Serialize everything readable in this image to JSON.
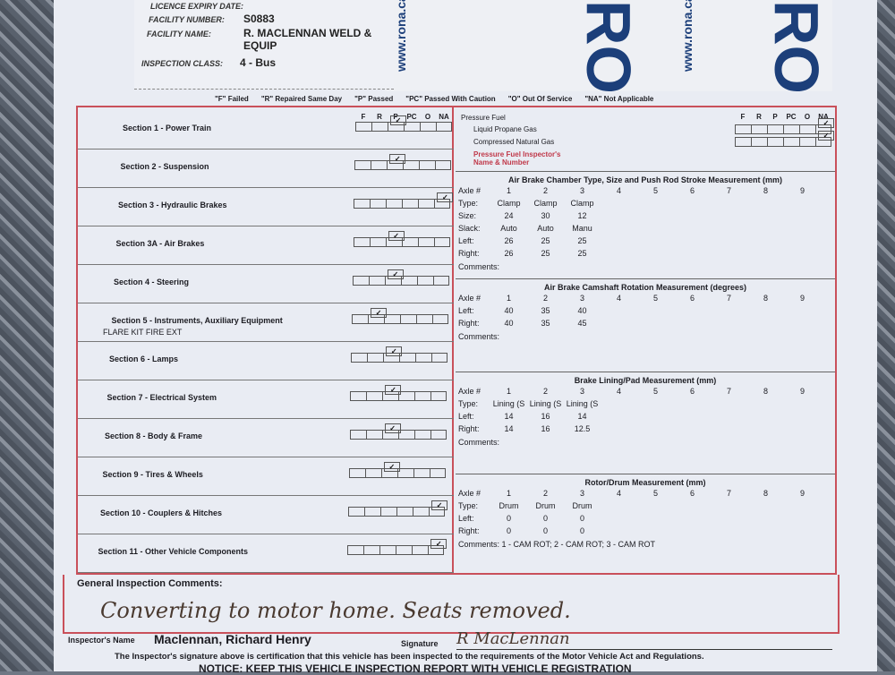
{
  "background": {
    "bag_brand": "RONA",
    "bag_url": "www.rona.ca"
  },
  "header": {
    "expiry_label": "LICENCE EXPIRY DATE:",
    "facility_number_label": "FACILITY NUMBER:",
    "facility_number": "S0883",
    "facility_name_label": "FACILITY NAME:",
    "facility_name": "R. MACLENNAN WELD & EQUIP",
    "inspection_class_label": "INSPECTION CLASS:",
    "inspection_class": "4 - Bus"
  },
  "legend": [
    "\"F\" Failed",
    "\"R\" Repaired Same Day",
    "\"P\" Passed",
    "\"PC\" Passed With Caution",
    "\"O\" Out Of Service",
    "\"NA\" Not Applicable"
  ],
  "columns": [
    "F",
    "R",
    "P",
    "PC",
    "O",
    "NA"
  ],
  "sections": [
    {
      "name": "Section 1 - Power Train",
      "result": "P"
    },
    {
      "name": "Section 2 - Suspension",
      "result": "P"
    },
    {
      "name": "Section 3 - Hydraulic Brakes",
      "result": "NA"
    },
    {
      "name": "Section 3A - Air Brakes",
      "result": "P"
    },
    {
      "name": "Section 4 - Steering",
      "result": "P"
    },
    {
      "name": "Section 5 - Instruments, Auxiliary Equipment",
      "note": "FLARE KIT  FIRE EXT",
      "result": "R"
    },
    {
      "name": "Section 6 - Lamps",
      "result": "P"
    },
    {
      "name": "Section 7 - Electrical System",
      "result": "P"
    },
    {
      "name": "Section 8 - Body & Frame",
      "result": "P"
    },
    {
      "name": "Section 9 - Tires & Wheels",
      "result": "P"
    },
    {
      "name": "Section 10 - Couplers & Hitches",
      "result": "NA"
    },
    {
      "name": "Section 11 - Other Vehicle Components",
      "result": "NA"
    }
  ],
  "pressure_fuel": {
    "title": "Pressure Fuel",
    "items": [
      {
        "name": "Liquid Propane Gas",
        "result": "NA"
      },
      {
        "name": "Compressed Natural Gas",
        "result": "NA"
      }
    ],
    "inspector_label": "Pressure Fuel Inspector's Name & Number"
  },
  "measurements": [
    {
      "title": "Air Brake Chamber Type, Size and Push Rod Stroke Measurement (mm)",
      "rows": [
        {
          "label": "Axle #",
          "values": [
            "1",
            "2",
            "3",
            "4",
            "5",
            "6",
            "7",
            "8",
            "9"
          ]
        },
        {
          "label": "Type:",
          "values": [
            "Clamp",
            "Clamp",
            "Clamp"
          ]
        },
        {
          "label": "Size:",
          "values": [
            "24",
            "30",
            "12"
          ]
        },
        {
          "label": "Slack:",
          "values": [
            "Auto",
            "Auto",
            "Manu"
          ]
        },
        {
          "label": "Left:",
          "values": [
            "26",
            "25",
            "25"
          ]
        },
        {
          "label": "Right:",
          "values": [
            "26",
            "25",
            "25"
          ]
        }
      ],
      "comments": "Comments:"
    },
    {
      "title": "Air Brake Camshaft Rotation Measurement (degrees)",
      "rows": [
        {
          "label": "Axle #",
          "values": [
            "1",
            "2",
            "3",
            "4",
            "5",
            "6",
            "7",
            "8",
            "9"
          ]
        },
        {
          "label": "Left:",
          "values": [
            "40",
            "35",
            "40"
          ]
        },
        {
          "label": "Right:",
          "values": [
            "40",
            "35",
            "45"
          ]
        }
      ],
      "comments": "Comments:"
    },
    {
      "title": "Brake Lining/Pad Measurement (mm)",
      "rows": [
        {
          "label": "Axle #",
          "values": [
            "1",
            "2",
            "3",
            "4",
            "5",
            "6",
            "7",
            "8",
            "9"
          ]
        },
        {
          "label": "Type:",
          "values": [
            "Lining (S",
            "Lining (S",
            "Lining (S"
          ]
        },
        {
          "label": "Left:",
          "values": [
            "14",
            "16",
            "14"
          ]
        },
        {
          "label": "Right:",
          "values": [
            "14",
            "16",
            "12.5"
          ]
        }
      ],
      "comments": "Comments:"
    },
    {
      "title": "Rotor/Drum Measurement (mm)",
      "rows": [
        {
          "label": "Axle #",
          "values": [
            "1",
            "2",
            "3",
            "4",
            "5",
            "6",
            "7",
            "8",
            "9"
          ]
        },
        {
          "label": "Type:",
          "values": [
            "Drum",
            "Drum",
            "Drum"
          ]
        },
        {
          "label": "Left:",
          "values": [
            "0",
            "0",
            "0"
          ]
        },
        {
          "label": "Right:",
          "values": [
            "0",
            "0",
            "0"
          ]
        }
      ],
      "comments": "Comments: 1 - CAM ROT; 2 - CAM ROT; 3 - CAM ROT"
    }
  ],
  "general": {
    "label": "General Inspection Comments:",
    "text": "Converting to motor home. Seats removed."
  },
  "footer": {
    "inspector_label": "Inspector's Name",
    "inspector_name": "Maclennan, Richard Henry",
    "signature_label": "Signature",
    "signature": "R MacLennan",
    "certification": "The Inspector's signature above is certification that this vehicle has been inspected to the requirements of the Motor Vehicle Act and Regulations.",
    "notice": "NOTICE: KEEP THIS VEHICLE INSPECTION REPORT WITH VEHICLE REGISTRATION"
  },
  "colors": {
    "form_border": "#c9505a",
    "inspector_label": "#c0394a"
  }
}
